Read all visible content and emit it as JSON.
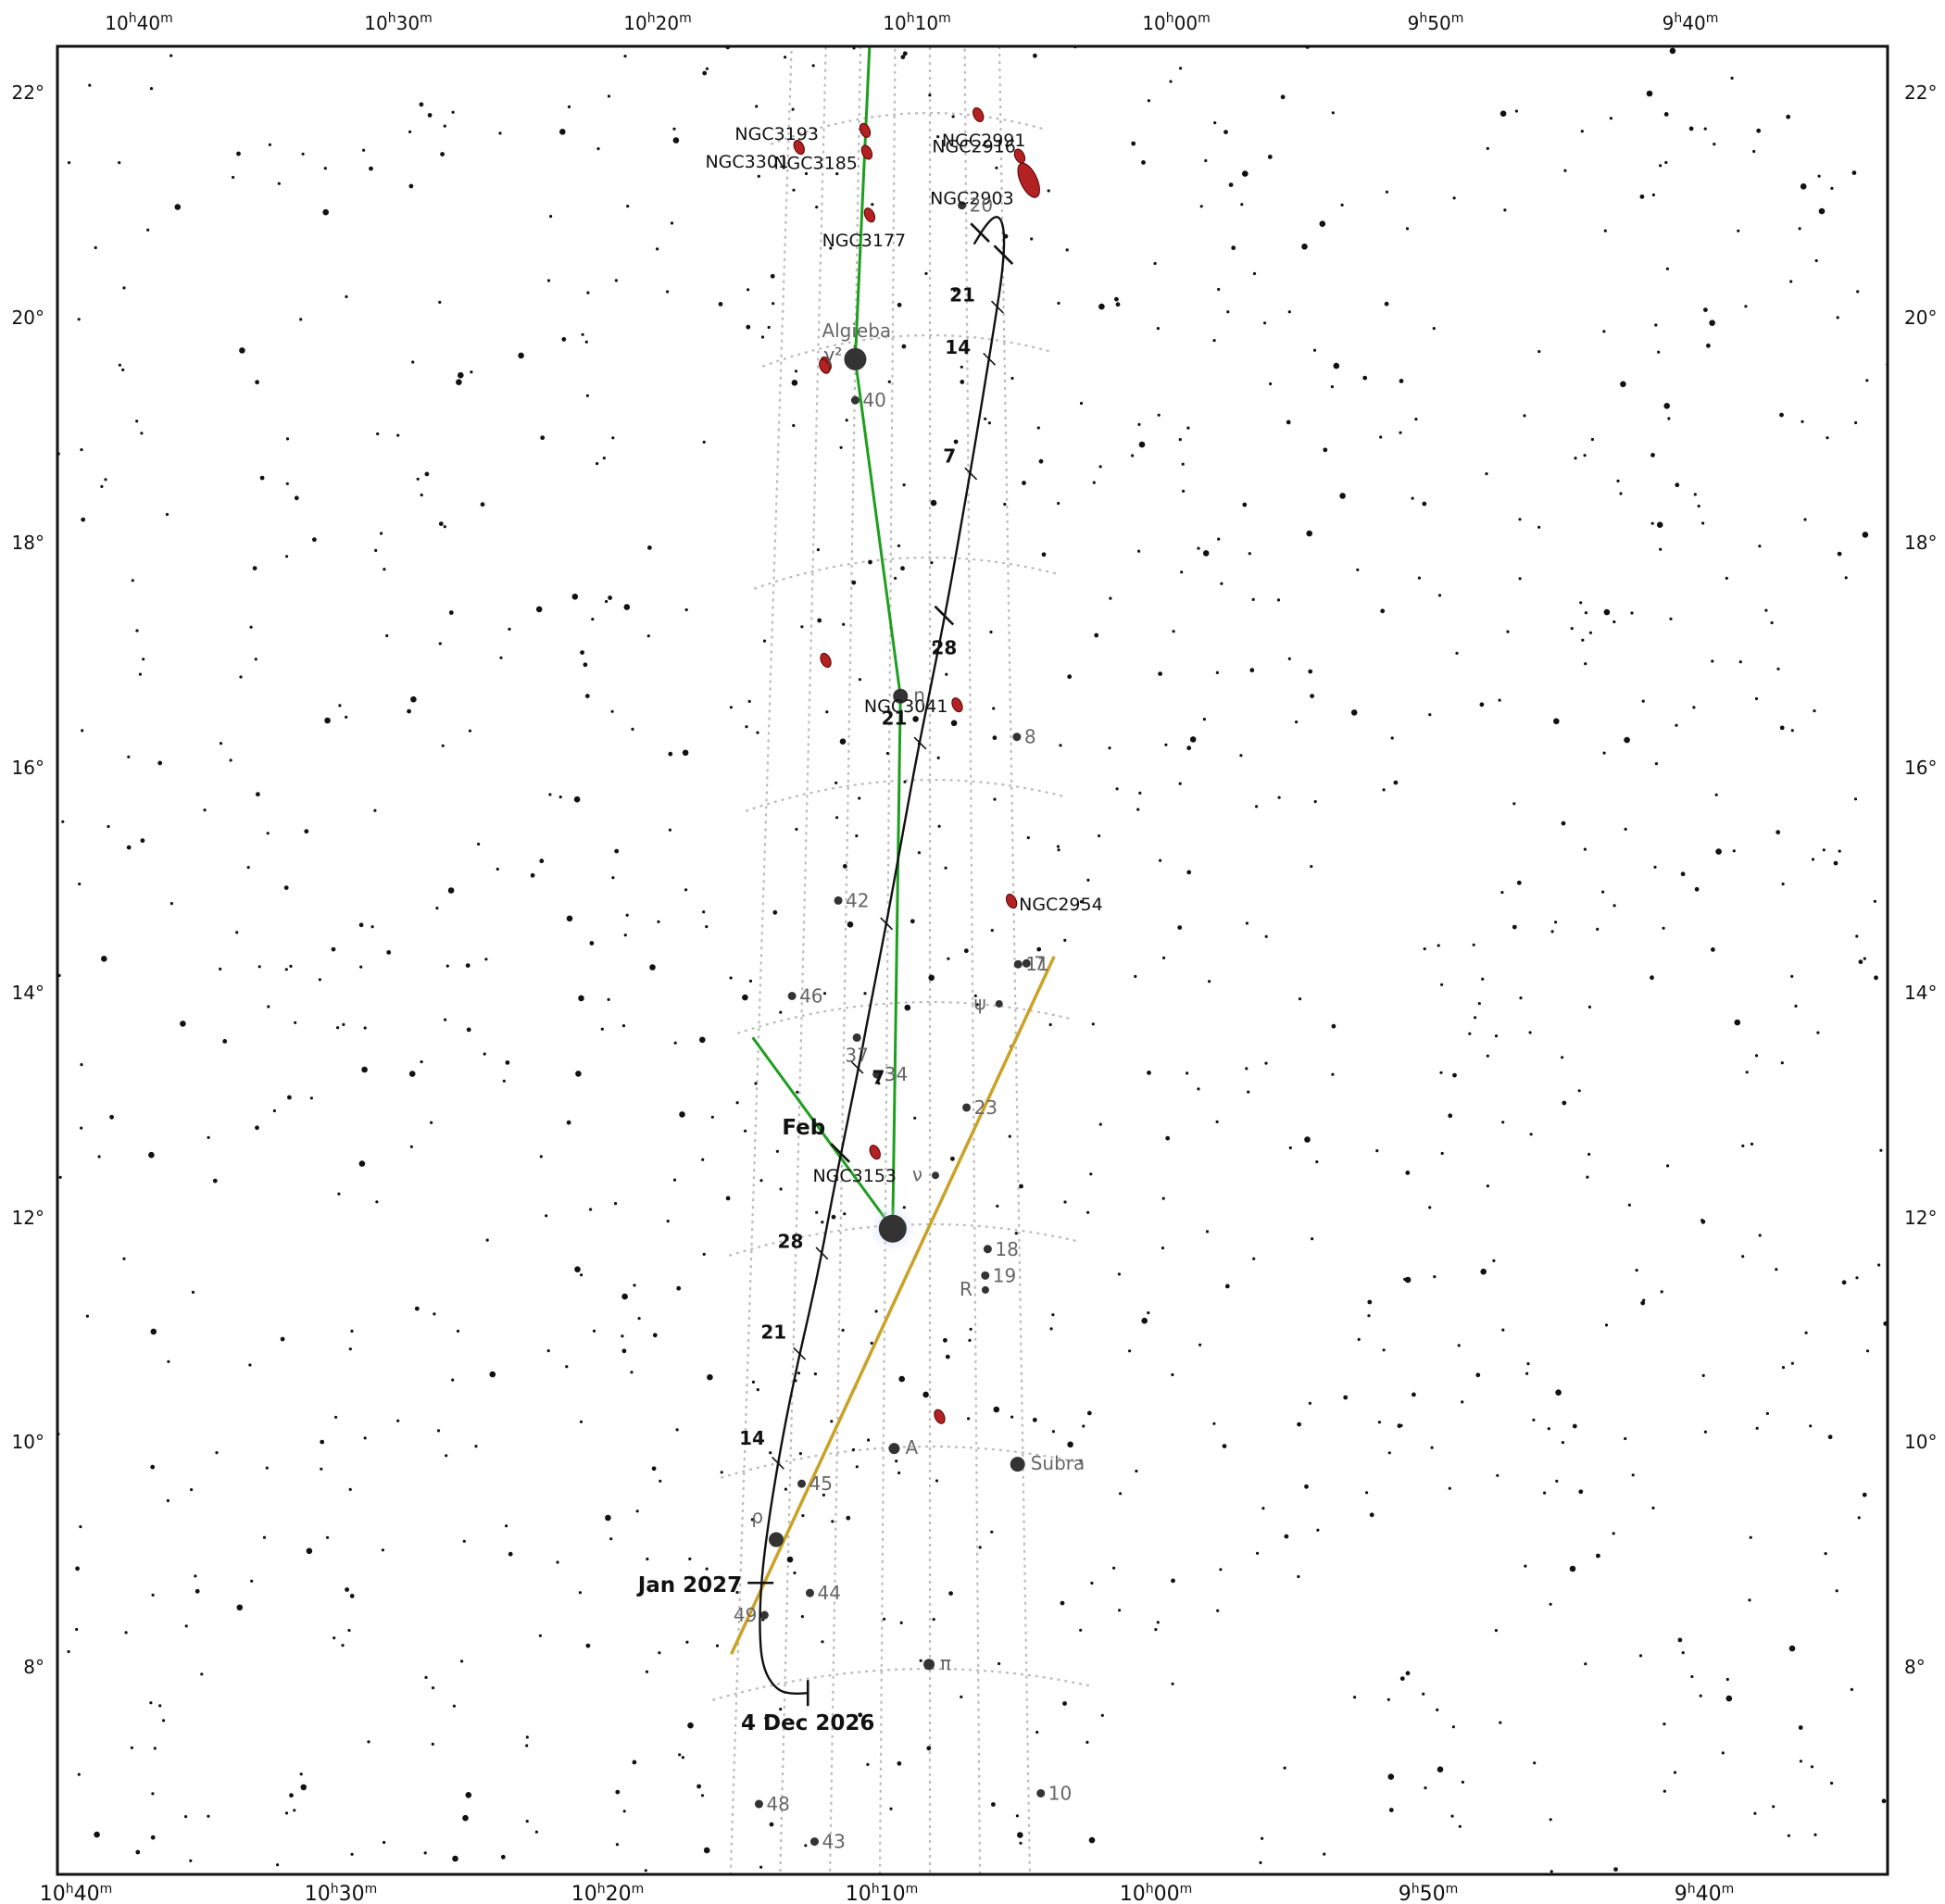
{
  "chart_data": {
    "type": "star-chart",
    "projection": "equatorial",
    "ra_ticks": {
      "top": [
        {
          "h": "10",
          "m": "40"
        },
        {
          "h": "10",
          "m": "30"
        },
        {
          "h": "10",
          "m": "20"
        },
        {
          "h": "10",
          "m": "10"
        },
        {
          "h": "10",
          "m": "00"
        },
        {
          "h": "9",
          "m": "50"
        },
        {
          "h": "9",
          "m": "40"
        }
      ],
      "bottom": [
        {
          "h": "10",
          "m": "40"
        },
        {
          "h": "10",
          "m": "30"
        },
        {
          "h": "10",
          "m": "20"
        },
        {
          "h": "10",
          "m": "10"
        },
        {
          "h": "10",
          "m": "00"
        },
        {
          "h": "9",
          "m": "50"
        },
        {
          "h": "9",
          "m": "40"
        }
      ]
    },
    "dec_ticks": [
      "22°",
      "20°",
      "18°",
      "16°",
      "14°",
      "12°",
      "10°",
      "8°"
    ],
    "named_stars": [
      {
        "name": "Algieba",
        "greek": "γ²",
        "ra": 10.333,
        "dec": 19.84,
        "mag": 2.0
      },
      {
        "name": "η",
        "ra": 10.122,
        "dec": 16.76,
        "mag": 3.5
      },
      {
        "name": "",
        "ra": 10.139,
        "dec": 11.97,
        "mag": 1.4
      },
      {
        "name": "Subra",
        "ra": 9.686,
        "dec": 9.89,
        "mag": 3.5
      },
      {
        "name": "ρ",
        "ra": 10.544,
        "dec": 9.31,
        "mag": 3.8
      },
      {
        "name": "ψ",
        "ra": 9.73,
        "dec": 14.02,
        "mag": 5.3
      },
      {
        "name": "ν",
        "ra": 9.979,
        "dec": 12.44,
        "mag": 5.3
      },
      {
        "name": "π",
        "ra": 10.003,
        "dec": 8.04,
        "mag": 4.7
      },
      {
        "name": "A",
        "ra": 10.128,
        "dec": 9.99,
        "mag": 4.4
      },
      {
        "name": "R",
        "ra": 9.795,
        "dec": 11.43,
        "mag": 6.0
      }
    ],
    "numbered_stars": [
      {
        "label": "40",
        "ra": 10.33,
        "dec": 19.47
      },
      {
        "label": "20",
        "ra": 9.852,
        "dec": 21.18
      },
      {
        "label": "8",
        "ra": 9.642,
        "dec": 16.45
      },
      {
        "label": "11",
        "ra": 9.653,
        "dec": 14.4
      },
      {
        "label": "7",
        "ra": 9.62,
        "dec": 14.42
      },
      {
        "label": "42",
        "ra": 10.365,
        "dec": 14.98
      },
      {
        "label": "46",
        "ra": 10.54,
        "dec": 14.2
      },
      {
        "label": "37",
        "ra": 10.283,
        "dec": 13.72
      },
      {
        "label": "34",
        "ra": 10.204,
        "dec": 13.37
      },
      {
        "label": "23",
        "ra": 9.86,
        "dec": 13.06
      },
      {
        "label": "18",
        "ra": 9.785,
        "dec": 11.8
      },
      {
        "label": "19",
        "ra": 9.795,
        "dec": 11.56
      },
      {
        "label": "45",
        "ra": 10.458,
        "dec": 9.77
      },
      {
        "label": "44",
        "ra": 10.42,
        "dec": 8.77
      },
      {
        "label": "49",
        "ra": 10.578,
        "dec": 8.65
      },
      {
        "label": "48",
        "ra": 10.578,
        "dec": 6.95
      },
      {
        "label": "43",
        "ra": 10.387,
        "dec": 6.52
      },
      {
        "label": "10",
        "ra": 9.625,
        "dec": 6.95
      }
    ],
    "galaxies": [
      {
        "label": "NGC3301",
        "ra": 10.615,
        "dec": 21.88
      },
      {
        "label": "NGC3193",
        "ra": 10.305,
        "dec": 21.89
      },
      {
        "label": "NGC3185",
        "ra": 10.295,
        "dec": 21.69
      },
      {
        "label": "NGC3177",
        "ra": 10.278,
        "dec": 21.12
      },
      {
        "label": "NGC2991",
        "ra": 9.772,
        "dec": 22.01
      },
      {
        "label": "NGC2916",
        "ra": 9.58,
        "dec": 21.7
      },
      {
        "label": "NGC2903",
        "ra": 9.54,
        "dec": 21.5
      },
      {
        "label": "NGC3041",
        "ra": 9.887,
        "dec": 16.68
      },
      {
        "label": "NGC2954",
        "ra": 9.675,
        "dec": 14.96
      },
      {
        "label": "NGC3153",
        "ra": 10.208,
        "dec": 12.67
      },
      {
        "label": "",
        "ra": 10.464,
        "dec": 19.85
      },
      {
        "label": "",
        "ra": 10.47,
        "dec": 19.83
      },
      {
        "label": "",
        "ra": 10.436,
        "dec": 17.17
      },
      {
        "label": "",
        "ra": 9.965,
        "dec": 10.27
      }
    ],
    "constellation_lines": [
      [
        {
          "ra": 10.28,
          "dec": 23.2
        },
        {
          "ra": 10.333,
          "dec": 19.84
        },
        {
          "ra": 10.122,
          "dec": 16.76
        },
        {
          "ra": 10.139,
          "dec": 11.97
        }
      ],
      [
        {
          "ra": 10.69,
          "dec": 13.92
        },
        {
          "ra": 10.139,
          "dec": 11.97
        }
      ]
    ],
    "ecliptic": [
      {
        "ra": 10.69,
        "dec": 8.37
      },
      {
        "ra": 9.51,
        "dec": 14.53
      }
    ],
    "comet_path": {
      "points": [
        {
          "ra": 10.42,
          "dec": 7.87
        },
        {
          "ra": 10.47,
          "dec": 7.88
        },
        {
          "ra": 10.53,
          "dec": 7.95
        },
        {
          "ra": 10.58,
          "dec": 8.18
        },
        {
          "ra": 10.595,
          "dec": 8.55
        },
        {
          "ra": 10.592,
          "dec": 9.0
        },
        {
          "ra": 10.575,
          "dec": 9.45
        },
        {
          "ra": 10.545,
          "dec": 10.0
        },
        {
          "ra": 10.515,
          "dec": 10.45
        },
        {
          "ra": 10.48,
          "dec": 10.9
        },
        {
          "ra": 10.44,
          "dec": 11.35
        },
        {
          "ra": 10.4,
          "dec": 11.85
        },
        {
          "ra": 10.36,
          "dec": 12.4
        },
        {
          "ra": 10.32,
          "dec": 12.9
        },
        {
          "ra": 10.27,
          "dec": 13.5
        },
        {
          "ra": 10.22,
          "dec": 14.15
        },
        {
          "ra": 10.17,
          "dec": 14.75
        },
        {
          "ra": 10.115,
          "dec": 15.45
        },
        {
          "ra": 10.055,
          "dec": 16.2
        },
        {
          "ra": 9.995,
          "dec": 16.85
        },
        {
          "ra": 9.93,
          "dec": 17.55
        },
        {
          "ra": 9.87,
          "dec": 18.25
        },
        {
          "ra": 9.81,
          "dec": 18.95
        },
        {
          "ra": 9.755,
          "dec": 19.6
        },
        {
          "ra": 9.7,
          "dec": 20.25
        },
        {
          "ra": 9.668,
          "dec": 20.65
        },
        {
          "ra": 9.657,
          "dec": 20.95
        },
        {
          "ra": 9.67,
          "dec": 21.1
        },
        {
          "ra": 9.7,
          "dec": 21.12
        },
        {
          "ra": 9.745,
          "dec": 21.02
        },
        {
          "ra": 9.798,
          "dec": 20.84
        }
      ],
      "ticks": [
        {
          "ra": 10.42,
          "dec": 7.87,
          "label": "4 Dec 2026",
          "major": true
        },
        {
          "ra": 10.595,
          "dec": 8.95,
          "label": "Jan 2027",
          "major": true
        },
        {
          "ra": 10.545,
          "dec": 10.0,
          "label": "14",
          "major": false
        },
        {
          "ra": 10.477,
          "dec": 10.95,
          "label": "21",
          "major": false
        },
        {
          "ra": 10.402,
          "dec": 11.82,
          "label": "28",
          "major": false
        },
        {
          "ra": 10.34,
          "dec": 12.7,
          "label": "Feb",
          "major": true
        },
        {
          "ra": 10.28,
          "dec": 13.45,
          "label": "7",
          "major": false
        },
        {
          "ra": 10.172,
          "dec": 14.72,
          "label": "",
          "major": false
        },
        {
          "ra": 10.04,
          "dec": 16.33,
          "label": "21",
          "major": false
        },
        {
          "ra": 9.94,
          "dec": 17.48,
          "label": "28",
          "major": true
        },
        {
          "ra": 9.822,
          "dec": 18.77,
          "label": "7",
          "major": false
        },
        {
          "ra": 9.735,
          "dec": 19.82,
          "label": "14",
          "major": false
        },
        {
          "ra": 9.695,
          "dec": 20.3,
          "label": "21",
          "major": false
        },
        {
          "ra": 9.664,
          "dec": 20.78,
          "label": "",
          "major": true
        },
        {
          "ra": 9.77,
          "dec": 20.95,
          "label": "",
          "major": true
        }
      ]
    }
  }
}
